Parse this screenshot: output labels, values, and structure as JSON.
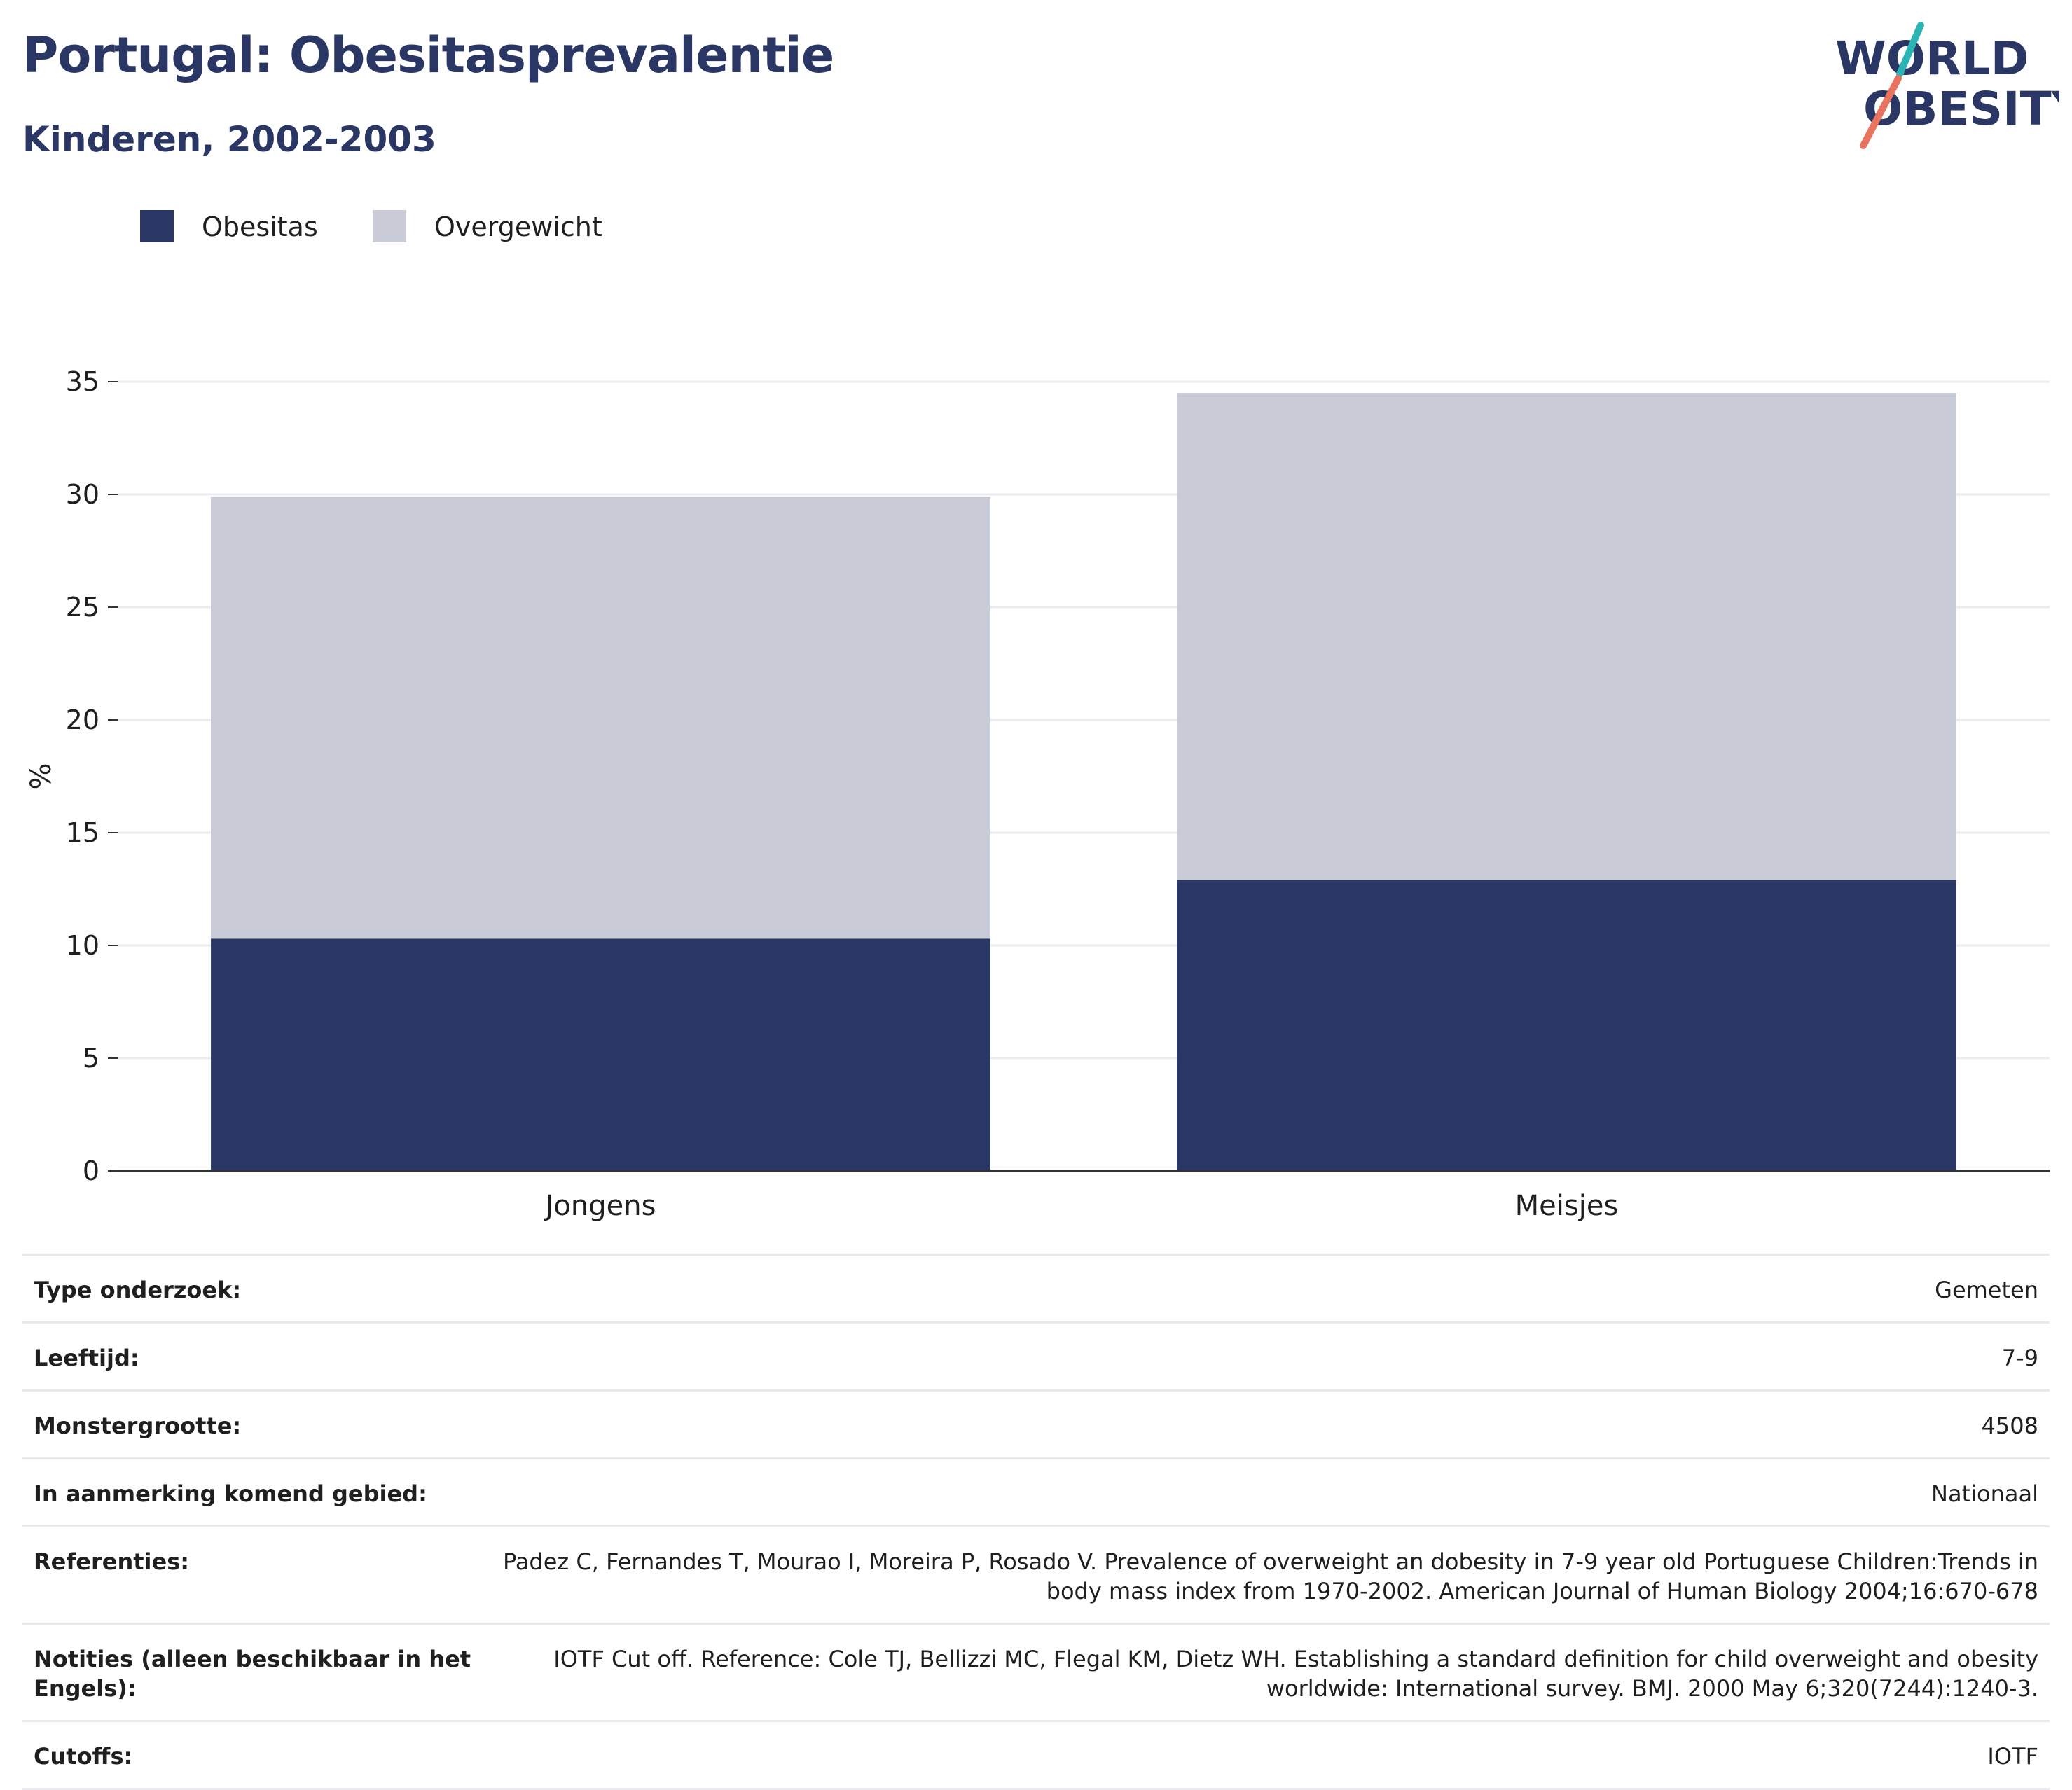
{
  "header": {
    "title": "Portugal: Obesitasprevalentie",
    "subtitle": "Kinderen, 2002-2003"
  },
  "logo": {
    "line1": "WORLD",
    "line2": "OBESITY",
    "colors": {
      "text": "#2a3664",
      "slash_top": "#2bb4b4",
      "slash_bottom": "#e8735f"
    }
  },
  "chart_data": {
    "type": "bar",
    "stacked": true,
    "categories": [
      "Jongens",
      "Meisjes"
    ],
    "series": [
      {
        "name": "Obesitas",
        "values": [
          10.3,
          12.9
        ],
        "color": "#2a3664"
      },
      {
        "name": "Overgewicht",
        "values": [
          19.6,
          21.6
        ],
        "color": "#c9cbd6"
      }
    ],
    "ylabel": "%",
    "ylim": [
      0,
      35
    ],
    "yticks": [
      0,
      5,
      10,
      15,
      20,
      25,
      30,
      35
    ],
    "grid": true,
    "legend_position": "top-left"
  },
  "info": [
    {
      "label": "Type onderzoek:",
      "value": "Gemeten"
    },
    {
      "label": "Leeftijd:",
      "value": "7-9"
    },
    {
      "label": "Monstergrootte:",
      "value": "4508"
    },
    {
      "label": "In aanmerking komend gebied:",
      "value": "Nationaal"
    },
    {
      "label": "Referenties:",
      "value": "Padez C, Fernandes T, Mourao I, Moreira P, Rosado V. Prevalence of overweight an dobesity in 7-9 year old Portuguese Children:Trends in body mass index from 1970-2002. American Journal of Human Biology 2004;16:670-678"
    },
    {
      "label": "Notities (alleen beschikbaar in het Engels):",
      "value": "IOTF Cut off. Reference: Cole TJ, Bellizzi MC, Flegal KM, Dietz WH. Establishing a standard definition for child overweight and obesity worldwide: International survey. BMJ. 2000 May 6;320(7244):1240-3."
    },
    {
      "label": "Cutoffs:",
      "value": "IOTF"
    }
  ]
}
